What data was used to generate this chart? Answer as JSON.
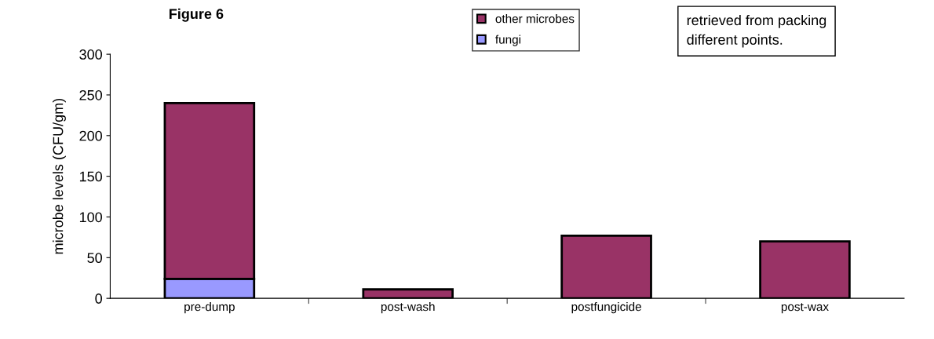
{
  "chart_data": {
    "type": "bar",
    "stacked": true,
    "title": "Figure 6",
    "categories": [
      "pre-dump",
      "post-wash",
      "postfungicide",
      "post-wax"
    ],
    "series": [
      {
        "name": "fungi",
        "color": "#9999ff",
        "values": [
          24,
          0,
          0,
          null
        ]
      },
      {
        "name": "other microbes",
        "color": "#993366",
        "values": [
          216,
          11,
          77,
          70
        ]
      }
    ],
    "ylabel": "microbe levels (CFU/gm)",
    "ylim": [
      0,
      300
    ],
    "yticks": [
      0,
      50,
      100,
      150,
      200,
      250,
      300
    ],
    "legend": "top",
    "grid": false,
    "annotations": [
      "retrieved from packing\ndifferent points."
    ]
  }
}
